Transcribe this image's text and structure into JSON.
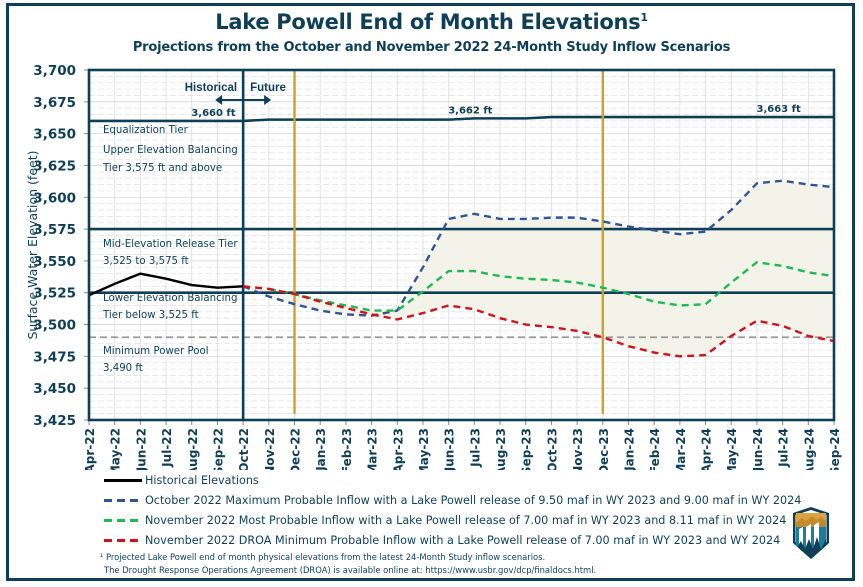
{
  "title": "Lake Powell End of Month Elevations",
  "title_superscript": "1",
  "subtitle": "Projections from the October and November 2022 24-Month Study Inflow Scenarios",
  "chart_data": {
    "type": "line",
    "title": "Lake Powell End of Month Elevations",
    "subtitle": "Projections from the October and November 2022 24-Month Study Inflow Scenarios",
    "xlabel": "",
    "ylabel": "Surface Water Elevation (feet)",
    "ylim": [
      3425,
      3700
    ],
    "yticks": [
      3425,
      3450,
      3475,
      3500,
      3525,
      3550,
      3575,
      3600,
      3625,
      3650,
      3675,
      3700
    ],
    "ytick_labels": [
      "3,425",
      "3,450",
      "3,475",
      "3,500",
      "3,525",
      "3,550",
      "3,575",
      "3,600",
      "3,625",
      "3,650",
      "3,675",
      "3,700"
    ],
    "grid": true,
    "legend_position": "bottom",
    "categories": [
      "Apr-22",
      "May-22",
      "Jun-22",
      "Jul-22",
      "Aug-22",
      "Sep-22",
      "Oct-22",
      "Nov-22",
      "Dec-22",
      "Jan-23",
      "Feb-23",
      "Mar-23",
      "Apr-23",
      "May-23",
      "Jun-23",
      "Jul-23",
      "Aug-23",
      "Sep-23",
      "Oct-23",
      "Nov-23",
      "Dec-23",
      "Jan-24",
      "Feb-24",
      "Mar-24",
      "Apr-24",
      "May-24",
      "Jun-24",
      "Jul-24",
      "Aug-24",
      "Sep-24"
    ],
    "series": [
      {
        "name": "Historical Elevations",
        "color": "#000000",
        "style": "solid",
        "values": [
          3523,
          3532,
          3540,
          3536,
          3531,
          3529,
          3530,
          null,
          null,
          null,
          null,
          null,
          null,
          null,
          null,
          null,
          null,
          null,
          null,
          null,
          null,
          null,
          null,
          null,
          null,
          null,
          null,
          null,
          null,
          null
        ]
      },
      {
        "name": "October 2022 Maximum Probable Inflow with a Lake Powell release of 9.50 maf in WY 2023 and 9.00 maf in WY 2024",
        "color": "#2f5597",
        "style": "dashed",
        "values": [
          null,
          null,
          null,
          null,
          null,
          null,
          3530,
          3522,
          3516,
          3511,
          3508,
          3507,
          3511,
          3545,
          3583,
          3587,
          3583,
          3583,
          3584,
          3584,
          3581,
          3577,
          3574,
          3571,
          3573,
          3590,
          3611,
          3613,
          3610,
          3608
        ]
      },
      {
        "name": "November 2022 Most Probable Inflow with a Lake Powell release of 7.00 maf in WY 2023 and 8.11 maf in WY 2024",
        "color": "#1db954",
        "style": "dashed",
        "values": [
          null,
          null,
          null,
          null,
          null,
          null,
          null,
          3528,
          3524,
          3519,
          3515,
          3511,
          3511,
          3526,
          3542,
          3542,
          3538,
          3536,
          3535,
          3533,
          3529,
          3524,
          3518,
          3515,
          3516,
          3533,
          3549,
          3546,
          3541,
          3538
        ]
      },
      {
        "name": "November 2022 DROA Minimum Probable Inflow with a Lake Powell release of 7.00 maf in WY 2023 and  WY 2024",
        "color": "#d0121b",
        "style": "dashed",
        "values": [
          null,
          null,
          null,
          null,
          null,
          null,
          3530,
          3528,
          3524,
          3518,
          3513,
          3508,
          3504,
          3509,
          3515,
          3512,
          3505,
          3500,
          3498,
          3495,
          3490,
          3483,
          3478,
          3475,
          3476,
          3491,
          3503,
          3499,
          3491,
          3487
        ]
      }
    ],
    "equalization_line": {
      "values": [
        3660,
        3660,
        3660,
        3660,
        3660,
        3660,
        3660,
        3661,
        3661,
        3661,
        3661,
        3661,
        3661,
        3661,
        3661,
        3662,
        3662,
        3662,
        3663,
        3663,
        3663,
        3663,
        3663,
        3663,
        3663,
        3663,
        3663,
        3663,
        3663,
        3663
      ],
      "labels": [
        {
          "text": "3,660 ft",
          "month": "Sep-22"
        },
        {
          "text": "3,662 ft",
          "month": "Jul-23"
        },
        {
          "text": "3,663 ft",
          "month": "Jul-24"
        }
      ]
    },
    "reference_lines": [
      {
        "name": "upper-tier-boundary",
        "value": 3575,
        "style": "solid"
      },
      {
        "name": "lower-tier-boundary",
        "value": 3525,
        "style": "solid"
      },
      {
        "name": "minimum-power-pool",
        "value": 3490,
        "style": "dashed",
        "color": "#999999"
      }
    ],
    "vertical_markers": [
      {
        "name": "historical-future-divider",
        "month": "Oct-22",
        "color": "#0f3f57"
      },
      {
        "name": "marker-dec-22",
        "month": "Dec-22",
        "color": "#c9a227"
      },
      {
        "name": "marker-dec-23",
        "month": "Dec-23",
        "color": "#c9a227"
      }
    ],
    "annotations": {
      "historical": "Historical",
      "future": "Future",
      "tiers": [
        {
          "line1": "Equalization Tier",
          "line2": ""
        },
        {
          "line1": "Upper Elevation Balancing",
          "line2": "Tier 3,575 ft and above"
        },
        {
          "line1": "Mid-Elevation Release Tier",
          "line2": "3,525 to 3,575 ft"
        },
        {
          "line1": "Lower Elevation Balancing",
          "line2": "Tier below 3,525 ft"
        },
        {
          "line1": "Minimum Power Pool",
          "line2": "3,490 ft"
        }
      ]
    },
    "colors": {
      "frame": "#0f3f57",
      "band_fill": "#f3f3ea",
      "gold": "#c9a227"
    }
  },
  "legend": [
    {
      "label": "Historical Elevations",
      "color": "#000000",
      "style": "solid"
    },
    {
      "label": "October 2022 Maximum Probable Inflow with a Lake Powell release of 9.50 maf in WY 2023 and 9.00 maf in WY 2024",
      "color": "#2f5597",
      "style": "dashed"
    },
    {
      "label": "November 2022 Most Probable Inflow with a Lake Powell release of 7.00 maf in WY 2023 and 8.11 maf in WY 2024",
      "color": "#1db954",
      "style": "dashed"
    },
    {
      "label": "November 2022 DROA Minimum Probable Inflow with a Lake Powell release of 7.00 maf in WY 2023 and  WY 2024",
      "color": "#d0121b",
      "style": "dashed"
    }
  ],
  "footnote": {
    "line1": "¹ Projected Lake Powell end of month physical elevations from the latest 24-Month Study inflow scenarios.",
    "line2": "The Drought Response Operations Agreement (DROA) is available online at: https://www.usbr.gov/dcp/finaldocs.html."
  },
  "logo": {
    "name": "bureau-of-reclamation-logo"
  }
}
